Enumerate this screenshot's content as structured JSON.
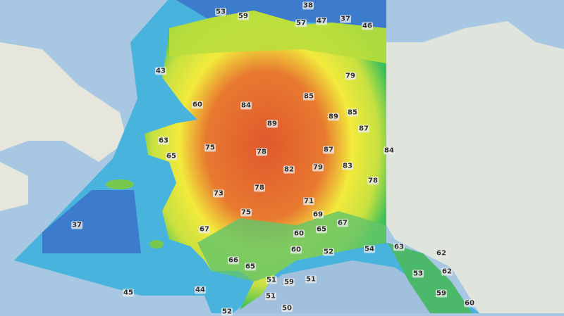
{
  "map": {
    "type": "temperature forecast map",
    "region": "Alaska",
    "colors": {
      "ocean": "#a7c7e3",
      "canada_land": "#dfe4dc",
      "cold": "#3a78c8",
      "cool": "#41b8e0",
      "mild": "#3cc05a",
      "warm": "#f2ea3c",
      "hot": "#e0582c"
    },
    "labels": [
      53,
      59,
      38,
      57,
      47,
      37,
      46,
      43,
      79,
      85,
      60,
      84,
      89,
      85,
      89,
      87,
      63,
      75,
      78,
      87,
      84,
      65,
      82,
      79,
      83,
      78,
      73,
      78,
      71,
      75,
      69,
      67,
      67,
      37,
      60,
      65,
      60,
      52,
      54,
      63,
      62,
      66,
      65,
      53,
      62,
      51,
      59,
      51,
      45,
      44,
      59,
      51,
      60,
      50,
      52
    ]
  }
}
